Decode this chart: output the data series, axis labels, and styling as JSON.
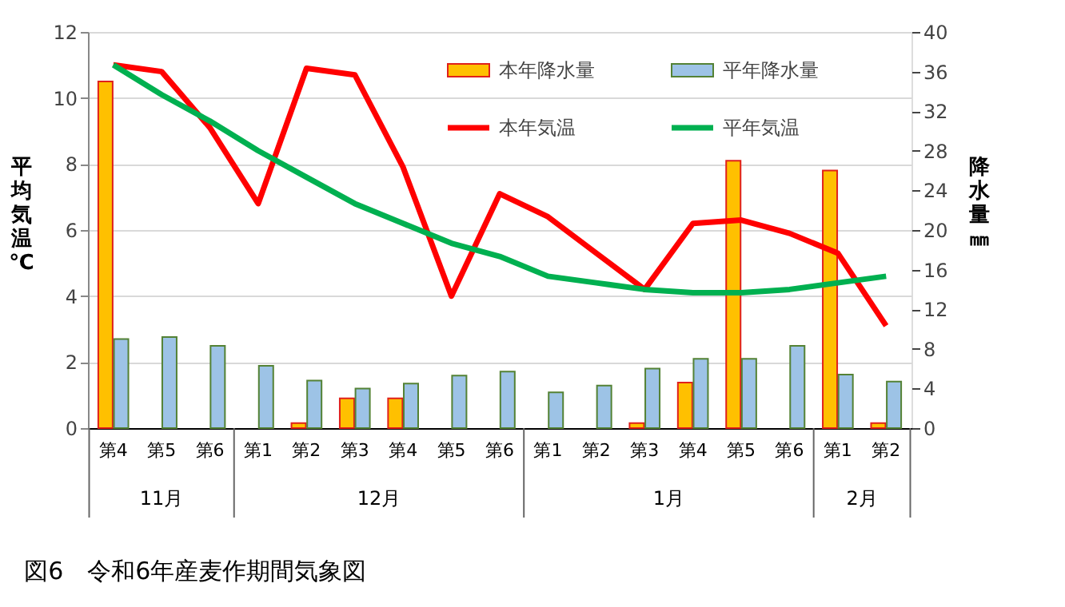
{
  "chart_data": {
    "type": "bar",
    "title": "図6　令和6年産麦作期間気象図",
    "ylabel": "平均気温℃",
    "y2label": "降水量㎜",
    "categories": [
      "第4",
      "第5",
      "第6",
      "第1",
      "第2",
      "第3",
      "第4",
      "第5",
      "第6",
      "第1",
      "第2",
      "第3",
      "第4",
      "第5",
      "第6",
      "第1",
      "第2"
    ],
    "annotations": [
      "11月",
      "12月",
      "1月",
      "2月"
    ],
    "series": [
      {
        "name": "本年降水量",
        "axis": "y2",
        "color": "#ffc000",
        "values": [
          35,
          0,
          0,
          0,
          0.5,
          3.0,
          3.0,
          0,
          0,
          0,
          0,
          0.5,
          4.6,
          27,
          0,
          26,
          0.5
        ]
      },
      {
        "name": "平年降水量",
        "axis": "y2",
        "color": "#9dc3e6",
        "values": [
          9.0,
          9.2,
          8.3,
          6.3,
          4.8,
          4.0,
          4.5,
          5.3,
          5.7,
          3.6,
          4.3,
          6.0,
          7.0,
          7.0,
          8.3,
          5.4,
          4.7
        ]
      },
      {
        "name": "本年気温",
        "type": "line",
        "color": "#ff0000",
        "values": [
          11.0,
          10.8,
          9.1,
          6.8,
          10.9,
          10.7,
          7.9,
          4.0,
          7.1,
          6.4,
          5.3,
          4.2,
          6.2,
          6.3,
          5.9,
          5.3,
          3.1
        ]
      },
      {
        "name": "平年気温",
        "type": "line",
        "color": "#00b050",
        "values": [
          11.0,
          10.1,
          9.3,
          8.4,
          7.6,
          6.8,
          6.2,
          5.6,
          5.2,
          4.6,
          4.4,
          4.2,
          4.1,
          4.1,
          4.2,
          4.4,
          4.6
        ]
      }
    ],
    "ylim": [
      0,
      12
    ],
    "yticks": [
      0,
      2,
      4,
      6,
      8,
      10,
      12
    ],
    "y2lim": [
      0,
      40
    ],
    "y2ticks": [
      0,
      4,
      8,
      12,
      16,
      20,
      24,
      28,
      32,
      36,
      40
    ],
    "grid": "y",
    "legend": "top right",
    "marker": "none",
    "line_style": "solid"
  }
}
